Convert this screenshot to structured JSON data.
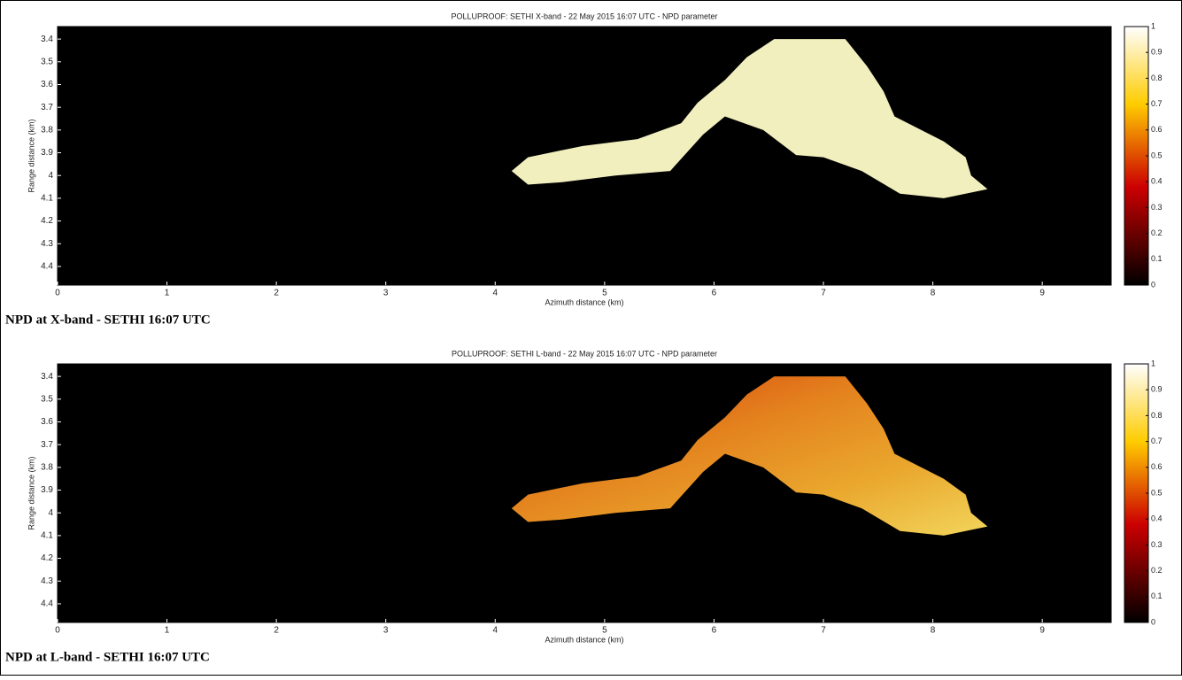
{
  "chart_data": [
    {
      "type": "heatmap",
      "title": "POLLUPROOF: SETHI X-band - 22 May 2015 16:07 UTC - NPD parameter",
      "xlabel": "Azimuth distance (km)",
      "ylabel": "Range distance (km)",
      "xlim": [
        0,
        9.63
      ],
      "xticks": [
        0,
        1,
        2,
        3,
        4,
        5,
        6,
        7,
        8,
        9
      ],
      "ylim": [
        4.482,
        3.345
      ],
      "yticks": [
        3.4,
        3.5,
        3.6,
        3.7,
        3.8,
        3.9,
        4,
        4.1,
        4.2,
        4.3,
        4.4
      ],
      "colormap": "hot",
      "clim": [
        0,
        1
      ],
      "cticks": [
        0,
        0.1,
        0.2,
        0.3,
        0.4,
        0.5,
        0.6,
        0.7,
        0.8,
        0.9,
        1
      ],
      "caption": "NPD at X-band - SETHI 16:07 UTC"
    },
    {
      "type": "heatmap",
      "title": "POLLUPROOF: SETHI L-band - 22 May 2015 16:07 UTC - NPD parameter",
      "xlabel": "Azimuth distance (km)",
      "ylabel": "Range distance (km)",
      "xlim": [
        0,
        9.63
      ],
      "xticks": [
        0,
        1,
        2,
        3,
        4,
        5,
        6,
        7,
        8,
        9
      ],
      "ylim": [
        4.482,
        3.345
      ],
      "yticks": [
        3.4,
        3.5,
        3.6,
        3.7,
        3.8,
        3.9,
        4,
        4.1,
        4.2,
        4.3,
        4.4
      ],
      "colormap": "hot",
      "clim": [
        0,
        1
      ],
      "cticks": [
        0,
        0.1,
        0.2,
        0.3,
        0.4,
        0.5,
        0.6,
        0.7,
        0.8,
        0.9,
        1
      ],
      "caption": "NPD at L-band - SETHI 16:07 UTC"
    }
  ]
}
